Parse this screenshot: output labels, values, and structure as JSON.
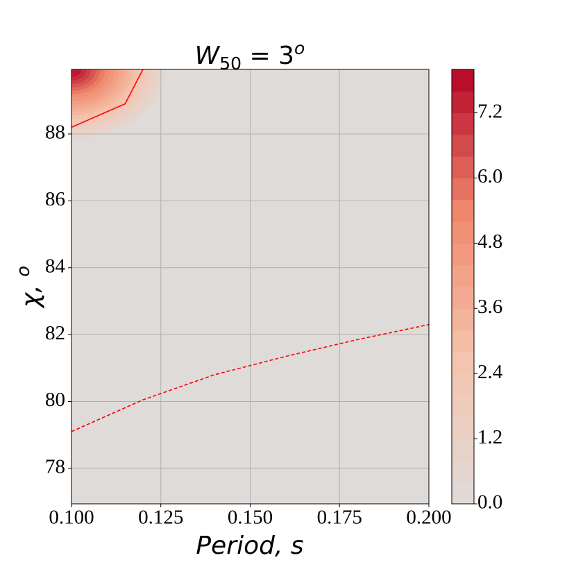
{
  "chart_data": {
    "type": "contour",
    "title": {
      "main": "W",
      "sub": "50",
      "eq": " = 3",
      "sup": "o"
    },
    "x_label": "Period,  s",
    "y_label": {
      "main": "χ,  ",
      "sup": "o"
    },
    "xlim": [
      0.1,
      0.2
    ],
    "ylim": [
      76.94,
      89.93
    ],
    "xticks": [
      {
        "value": 0.1,
        "label": "0.100"
      },
      {
        "value": 0.125,
        "label": "0.125"
      },
      {
        "value": 0.15,
        "label": "0.150"
      },
      {
        "value": 0.175,
        "label": "0.175"
      },
      {
        "value": 0.2,
        "label": "0.200"
      }
    ],
    "yticks": [
      78,
      80,
      82,
      84,
      86,
      88
    ],
    "grid": true,
    "background_color": "#dfdbd9",
    "colormap": [
      "#dfdbd9",
      "#f5c4ad",
      "#ef8a6e",
      "#b40426"
    ],
    "levels": [
      0,
      0.4,
      0.8,
      1.2,
      1.6,
      2.0,
      2.4,
      2.8,
      3.2,
      3.6,
      4.0,
      4.4,
      4.8,
      5.2,
      5.6,
      6.0,
      6.4,
      6.8,
      7.2,
      7.6,
      8.0
    ],
    "colorbar_lim": [
      0,
      8.0
    ],
    "colorbar_ticks": [
      {
        "value": 0,
        "label": "0.0"
      },
      1.2,
      2.4,
      3.6,
      4.8,
      {
        "value": 6,
        "label": "6.0"
      },
      7.2
    ],
    "lines": [
      {
        "color": "#ff0000",
        "style": "solid",
        "x": [
          0.1,
          0.115,
          0.12
        ],
        "y": [
          88.2,
          88.9,
          89.93
        ]
      },
      {
        "color": "#ff0000",
        "style": "dashed",
        "x": [
          0.1,
          0.12,
          0.14,
          0.16,
          0.18,
          0.2
        ],
        "y": [
          79.1,
          80.05,
          80.8,
          81.35,
          81.85,
          82.3
        ]
      }
    ]
  }
}
